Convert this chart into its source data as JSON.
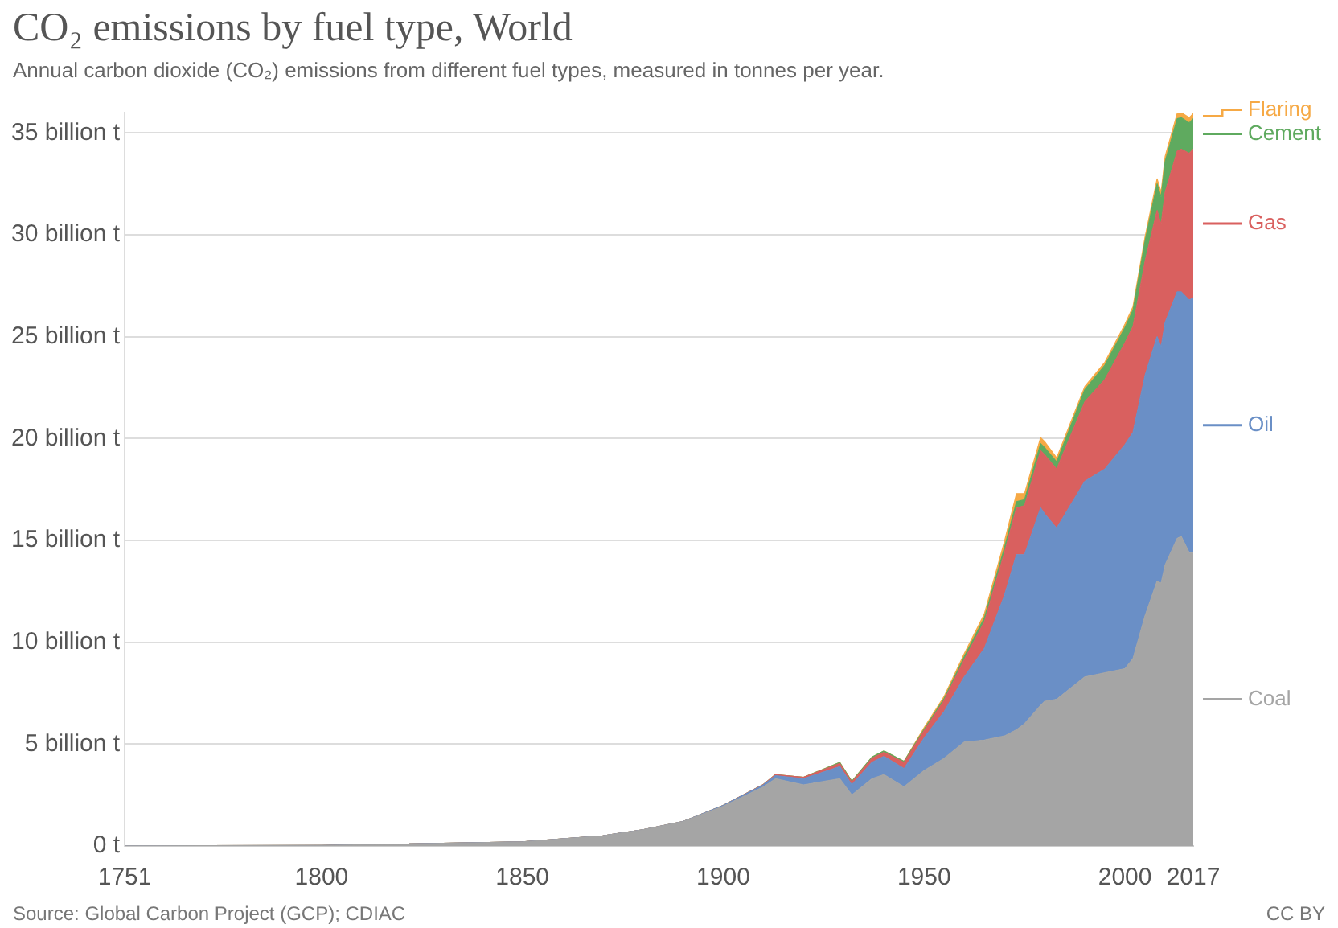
{
  "chart_data": {
    "type": "area",
    "stacked": true,
    "title": "CO₂ emissions by fuel type, World",
    "subtitle": "Annual carbon dioxide (CO₂) emissions from different fuel types, measured in tonnes per year.",
    "x": [
      1751,
      1800,
      1850,
      1870,
      1880,
      1890,
      1900,
      1910,
      1913,
      1920,
      1929,
      1932,
      1937,
      1940,
      1945,
      1950,
      1955,
      1960,
      1965,
      1970,
      1973,
      1975,
      1979,
      1980,
      1983,
      1990,
      1995,
      2000,
      2002,
      2005,
      2008,
      2009,
      2010,
      2013,
      2014,
      2016,
      2017
    ],
    "series": [
      {
        "name": "Coal",
        "color": "#a5a5a5",
        "values": [
          0.01,
          0.03,
          0.2,
          0.5,
          0.8,
          1.2,
          1.95,
          2.9,
          3.3,
          3.0,
          3.3,
          2.5,
          3.3,
          3.5,
          2.9,
          3.7,
          4.3,
          5.1,
          5.2,
          5.4,
          5.7,
          6.0,
          6.9,
          7.1,
          7.2,
          8.3,
          8.5,
          8.7,
          9.2,
          11.3,
          13.0,
          12.9,
          13.8,
          15.1,
          15.2,
          14.4,
          14.4
        ]
      },
      {
        "name": "Oil",
        "color": "#6a8fc6",
        "values": [
          0,
          0,
          0,
          0,
          0,
          0,
          0.04,
          0.1,
          0.15,
          0.3,
          0.6,
          0.5,
          0.8,
          0.9,
          0.9,
          1.6,
          2.3,
          3.2,
          4.5,
          6.9,
          8.6,
          8.3,
          9.7,
          9.2,
          8.4,
          9.6,
          10.0,
          11.0,
          11.1,
          11.8,
          12.0,
          11.6,
          11.9,
          12.1,
          12.0,
          12.4,
          12.5
        ]
      },
      {
        "name": "Gas",
        "color": "#d9605f",
        "values": [
          0,
          0,
          0,
          0,
          0,
          0,
          0,
          0.02,
          0.05,
          0.07,
          0.15,
          0.13,
          0.2,
          0.2,
          0.3,
          0.36,
          0.55,
          0.85,
          1.3,
          2.1,
          2.3,
          2.4,
          2.8,
          2.9,
          2.9,
          3.9,
          4.4,
          5.0,
          5.2,
          5.6,
          6.2,
          6.0,
          6.4,
          6.9,
          7.0,
          7.2,
          7.3
        ]
      },
      {
        "name": "Cement",
        "color": "#5faa5f",
        "values": [
          0,
          0,
          0,
          0,
          0,
          0,
          0,
          0,
          0,
          0,
          0.05,
          0.04,
          0.06,
          0.07,
          0.05,
          0.07,
          0.1,
          0.15,
          0.2,
          0.25,
          0.3,
          0.3,
          0.35,
          0.35,
          0.35,
          0.6,
          0.7,
          0.75,
          0.8,
          1.0,
          1.3,
          1.35,
          1.5,
          1.6,
          1.55,
          1.5,
          1.5
        ]
      },
      {
        "name": "Flaring",
        "color": "#f6a945",
        "values": [
          0,
          0,
          0,
          0,
          0,
          0,
          0,
          0,
          0,
          0,
          0,
          0,
          0,
          0,
          0,
          0.08,
          0.1,
          0.14,
          0.2,
          0.3,
          0.4,
          0.3,
          0.3,
          0.3,
          0.2,
          0.15,
          0.15,
          0.17,
          0.18,
          0.2,
          0.25,
          0.25,
          0.25,
          0.25,
          0.25,
          0.25,
          0.25
        ]
      }
    ],
    "xlim": [
      1751,
      2017
    ],
    "xticks": [
      1751,
      1800,
      1850,
      1900,
      1950,
      2000,
      2017
    ],
    "ylim": [
      0,
      36
    ],
    "yticks": [
      {
        "value": 0,
        "label": "0 t"
      },
      {
        "value": 5,
        "label": "5 billion t"
      },
      {
        "value": 10,
        "label": "10 billion t"
      },
      {
        "value": 15,
        "label": "15 billion t"
      },
      {
        "value": 20,
        "label": "20 billion t"
      },
      {
        "value": 25,
        "label": "25 billion t"
      },
      {
        "value": 30,
        "label": "30 billion t"
      },
      {
        "value": 35,
        "label": "35 billion t"
      }
    ],
    "grid": "y",
    "legend": "right",
    "annotations": [
      "Source: Global Carbon Project (GCP); CDIAC",
      "CC BY"
    ]
  }
}
